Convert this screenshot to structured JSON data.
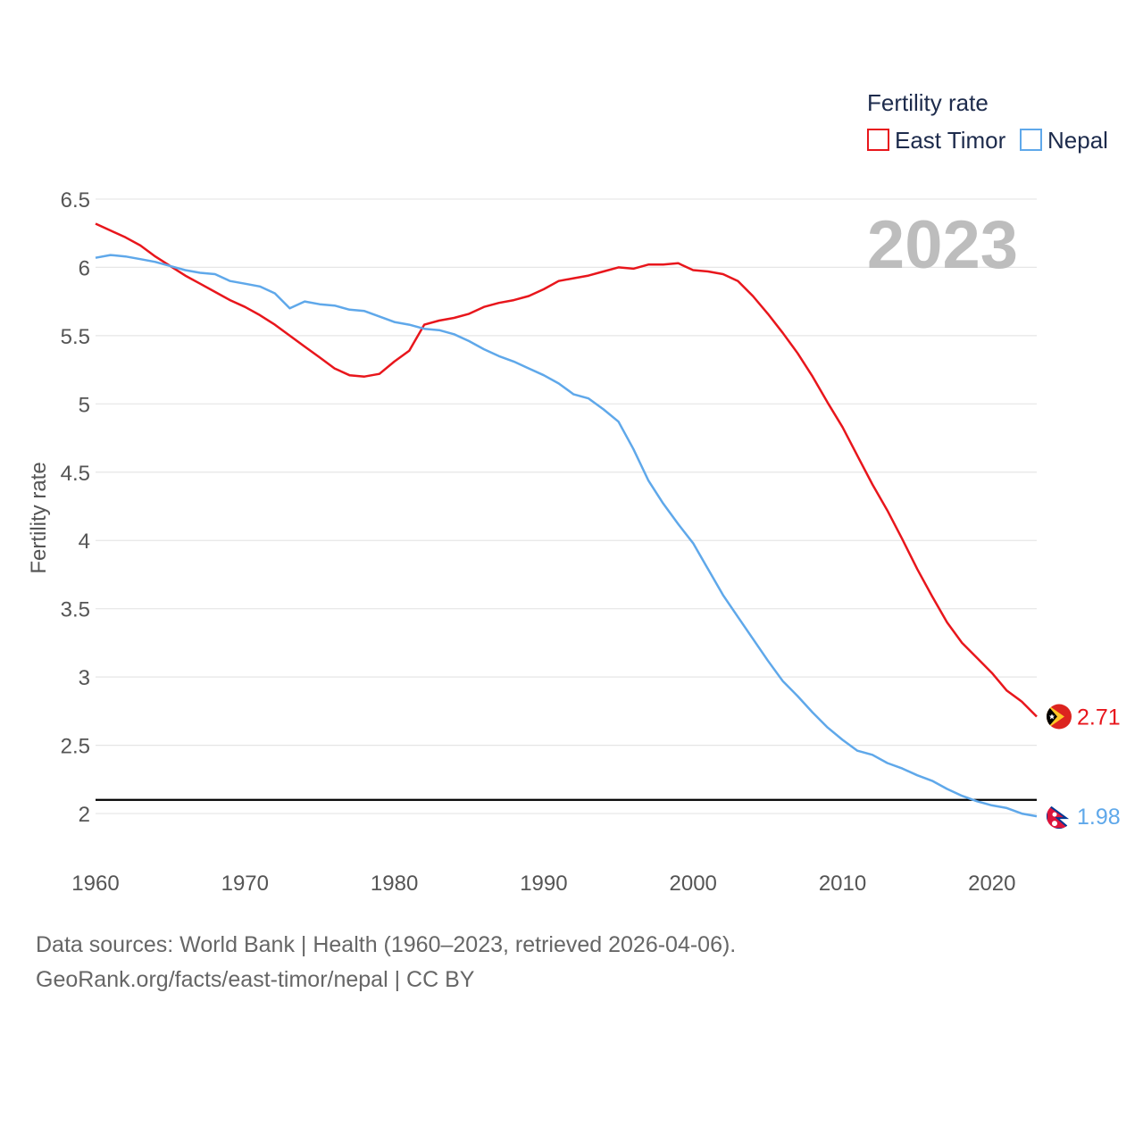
{
  "chart_data": {
    "type": "line",
    "legend_title": "Fertility rate",
    "ylabel": "Fertility rate",
    "year_label": "2023",
    "ylim": [
      1.68,
      6.65
    ],
    "xlim": [
      1960,
      2023
    ],
    "y_ticks": [
      "6.5",
      "6",
      "5.5",
      "5",
      "4.5",
      "4",
      "3.5",
      "3",
      "2.5",
      "2"
    ],
    "x_ticks": [
      "1960",
      "1970",
      "1980",
      "1990",
      "2000",
      "2010",
      "2020"
    ],
    "reference_line": {
      "value": 2.1,
      "color": "#000000"
    },
    "grid": true,
    "legend_position": "top-right",
    "series": [
      {
        "name": "East Timor",
        "color": "#e8161c",
        "end_label": "2.71",
        "flag": "east-timor-flag",
        "x": [
          1960,
          1961,
          1962,
          1963,
          1964,
          1965,
          1966,
          1967,
          1968,
          1969,
          1970,
          1971,
          1972,
          1973,
          1974,
          1975,
          1976,
          1977,
          1978,
          1979,
          1980,
          1981,
          1982,
          1983,
          1984,
          1985,
          1986,
          1987,
          1988,
          1989,
          1990,
          1991,
          1992,
          1993,
          1994,
          1995,
          1996,
          1997,
          1998,
          1999,
          2000,
          2001,
          2002,
          2003,
          2004,
          2005,
          2006,
          2007,
          2008,
          2009,
          2010,
          2011,
          2012,
          2013,
          2014,
          2015,
          2016,
          2017,
          2018,
          2019,
          2020,
          2021,
          2022,
          2023
        ],
        "values": [
          6.32,
          6.27,
          6.22,
          6.16,
          6.08,
          6.01,
          5.94,
          5.88,
          5.82,
          5.76,
          5.71,
          5.65,
          5.58,
          5.5,
          5.42,
          5.34,
          5.26,
          5.21,
          5.2,
          5.22,
          5.31,
          5.39,
          5.58,
          5.61,
          5.63,
          5.66,
          5.71,
          5.74,
          5.76,
          5.79,
          5.84,
          5.9,
          5.92,
          5.94,
          5.97,
          6.0,
          5.99,
          6.02,
          6.02,
          6.03,
          5.98,
          5.97,
          5.95,
          5.9,
          5.79,
          5.66,
          5.52,
          5.37,
          5.2,
          5.01,
          4.83,
          4.62,
          4.41,
          4.22,
          4.01,
          3.79,
          3.59,
          3.4,
          3.25,
          3.14,
          3.03,
          2.9,
          2.82,
          2.71
        ]
      },
      {
        "name": "Nepal",
        "color": "#5fa8ea",
        "end_label": "1.98",
        "flag": "nepal-flag",
        "x": [
          1960,
          1961,
          1962,
          1963,
          1964,
          1965,
          1966,
          1967,
          1968,
          1969,
          1970,
          1971,
          1972,
          1973,
          1974,
          1975,
          1976,
          1977,
          1978,
          1979,
          1980,
          1981,
          1982,
          1983,
          1984,
          1985,
          1986,
          1987,
          1988,
          1989,
          1990,
          1991,
          1992,
          1993,
          1994,
          1995,
          1996,
          1997,
          1998,
          1999,
          2000,
          2001,
          2002,
          2003,
          2004,
          2005,
          2006,
          2007,
          2008,
          2009,
          2010,
          2011,
          2012,
          2013,
          2014,
          2015,
          2016,
          2017,
          2018,
          2019,
          2020,
          2021,
          2022,
          2023
        ],
        "values": [
          6.07,
          6.09,
          6.08,
          6.06,
          6.04,
          6.01,
          5.98,
          5.96,
          5.95,
          5.9,
          5.88,
          5.86,
          5.81,
          5.7,
          5.75,
          5.73,
          5.72,
          5.69,
          5.68,
          5.64,
          5.6,
          5.58,
          5.55,
          5.54,
          5.51,
          5.46,
          5.4,
          5.35,
          5.31,
          5.26,
          5.21,
          5.15,
          5.07,
          5.04,
          4.96,
          4.87,
          4.67,
          4.44,
          4.27,
          4.12,
          3.98,
          3.79,
          3.6,
          3.44,
          3.28,
          3.12,
          2.97,
          2.86,
          2.74,
          2.63,
          2.54,
          2.46,
          2.43,
          2.37,
          2.33,
          2.28,
          2.24,
          2.18,
          2.13,
          2.09,
          2.06,
          2.04,
          2.0,
          1.98
        ]
      }
    ]
  },
  "footer": {
    "line1": "Data sources: World Bank | Health (1960–2023, retrieved 2026-04-06).",
    "line2": "GeoRank.org/facts/east-timor/nepal | CC BY"
  }
}
